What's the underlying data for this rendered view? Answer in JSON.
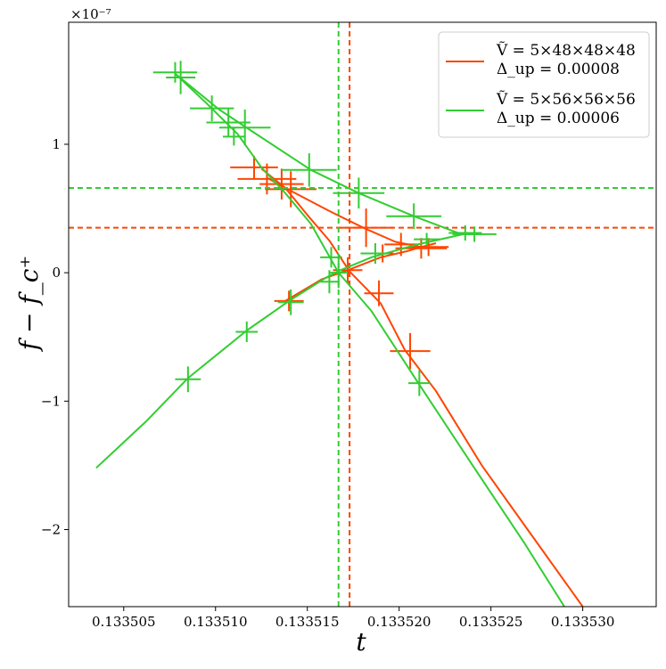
{
  "chart_data": {
    "type": "line",
    "title": "",
    "xlabel": "t",
    "ylabel": "f − f_c⁺",
    "y_multiplier": "×10⁻⁷",
    "xlim": [
      0.133502,
      0.133534
    ],
    "ylim": [
      -2.6,
      1.95
    ],
    "x_ticks": [
      0.133505,
      0.13351,
      0.133515,
      0.13352,
      0.133525,
      0.13353
    ],
    "x_tick_labels": [
      "0.133505",
      "0.133510",
      "0.133515",
      "0.133520",
      "0.133525",
      "0.133530"
    ],
    "y_ticks": [
      -2,
      -1,
      0,
      1
    ],
    "y_tick_labels": [
      "−2",
      "−1",
      "0",
      "1"
    ],
    "legend_position": "top-right",
    "series": [
      {
        "name": "Ṽ = 5×48×48×48",
        "delta": "Δ_up = 0.00008",
        "color": "#ff4500",
        "vline_t": 0.1335173,
        "hline_f": 0.35,
        "curve": [
          [
            0.1335125,
            0.81
          ],
          [
            0.1335138,
            0.66
          ],
          [
            0.133515,
            0.45
          ],
          [
            0.1335162,
            0.25
          ],
          [
            0.1335173,
            0.01
          ],
          [
            0.133519,
            -0.24
          ],
          [
            0.1335203,
            -0.6
          ],
          [
            0.133522,
            -0.92
          ],
          [
            0.1335245,
            -1.5
          ],
          [
            0.133527,
            -2.0
          ],
          [
            0.13353,
            -2.6
          ]
        ],
        "curve2": [
          [
            0.1335138,
            -0.22
          ],
          [
            0.1335158,
            -0.05
          ],
          [
            0.1335172,
            0.02
          ],
          [
            0.133519,
            0.12
          ],
          [
            0.1335205,
            0.17
          ],
          [
            0.1335212,
            0.2
          ],
          [
            0.133522,
            0.23
          ]
        ],
        "curve3": [
          [
            0.1335128,
            0.74
          ],
          [
            0.1335138,
            0.66
          ],
          [
            0.1335162,
            0.48
          ],
          [
            0.1335182,
            0.34
          ],
          [
            0.1335198,
            0.24
          ],
          [
            0.1335212,
            0.2
          ]
        ],
        "points": [
          {
            "t": 0.1335121,
            "f": 0.82,
            "dx": 1.3e-06,
            "dy": 0.09
          },
          {
            "t": 0.1335128,
            "f": 0.73,
            "dx": 1.6e-06,
            "dy": 0.12
          },
          {
            "t": 0.1335136,
            "f": 0.69,
            "dx": 1.2e-06,
            "dy": 0.12
          },
          {
            "t": 0.1335141,
            "f": 0.65,
            "dx": 1.4e-06,
            "dy": 0.14
          },
          {
            "t": 0.1335182,
            "f": 0.35,
            "dx": 1.5e-06,
            "dy": 0.15
          },
          {
            "t": 0.1335201,
            "f": 0.22,
            "dx": 9e-07,
            "dy": 0.09
          },
          {
            "t": 0.1335212,
            "f": 0.19,
            "dx": 1.4e-06,
            "dy": 0.08
          },
          {
            "t": 0.1335216,
            "f": 0.2,
            "dx": 1.1e-06,
            "dy": 0.07
          },
          {
            "t": 0.1335172,
            "f": 0.02,
            "dx": 8e-07,
            "dy": 0.1
          },
          {
            "t": 0.1335189,
            "f": -0.16,
            "dx": 8e-07,
            "dy": 0.1
          },
          {
            "t": 0.1335206,
            "f": -0.61,
            "dx": 1.1e-06,
            "dy": 0.14
          },
          {
            "t": 0.133514,
            "f": -0.22,
            "dx": 8e-07,
            "dy": 0.08
          },
          {
            "t": 0.1335191,
            "f": 0.15,
            "dx": 6e-07,
            "dy": 0.07
          }
        ]
      },
      {
        "name": "Ṽ = 5×56×56×56",
        "delta": "Δ_up = 0.00006",
        "color": "#32cd32",
        "vline_t": 0.1335167,
        "hline_f": 0.66,
        "curve": [
          [
            0.1335078,
            1.55
          ],
          [
            0.1335095,
            1.32
          ],
          [
            0.1335112,
            1.08
          ],
          [
            0.1335125,
            0.82
          ],
          [
            0.1335138,
            0.62
          ],
          [
            0.1335152,
            0.38
          ],
          [
            0.1335167,
            0.0
          ],
          [
            0.1335185,
            -0.3
          ],
          [
            0.133521,
            -0.85
          ],
          [
            0.133524,
            -1.5
          ],
          [
            0.1335268,
            -2.1
          ],
          [
            0.133529,
            -2.6
          ]
        ],
        "curve2": [
          [
            0.1335035,
            -1.52
          ],
          [
            0.1335062,
            -1.16
          ],
          [
            0.1335085,
            -0.82
          ],
          [
            0.1335117,
            -0.45
          ],
          [
            0.133514,
            -0.22
          ],
          [
            0.133516,
            -0.04
          ],
          [
            0.1335168,
            0.02
          ],
          [
            0.1335185,
            0.12
          ],
          [
            0.133521,
            0.22
          ],
          [
            0.1335235,
            0.3
          ],
          [
            0.1335245,
            0.3
          ]
        ],
        "curve3": [
          [
            0.1335078,
            1.55
          ],
          [
            0.1335102,
            1.27
          ],
          [
            0.133512,
            1.1
          ],
          [
            0.1335152,
            0.8
          ],
          [
            0.1335178,
            0.62
          ],
          [
            0.1335208,
            0.44
          ],
          [
            0.1335232,
            0.31
          ],
          [
            0.1335245,
            0.3
          ]
        ],
        "points": [
          {
            "t": 0.1335078,
            "f": 1.56,
            "dx": 1.2e-06,
            "dy": 0.08
          },
          {
            "t": 0.1335081,
            "f": 1.52,
            "dx": 8e-07,
            "dy": 0.13
          },
          {
            "t": 0.1335098,
            "f": 1.28,
            "dx": 1.2e-06,
            "dy": 0.1
          },
          {
            "t": 0.1335107,
            "f": 1.17,
            "dx": 1.2e-06,
            "dy": 0.11
          },
          {
            "t": 0.133511,
            "f": 1.06,
            "dx": 6e-07,
            "dy": 0.07
          },
          {
            "t": 0.1335116,
            "f": 1.13,
            "dx": 1.4e-06,
            "dy": 0.14
          },
          {
            "t": 0.1335151,
            "f": 0.8,
            "dx": 1.5e-06,
            "dy": 0.13
          },
          {
            "t": 0.1335178,
            "f": 0.62,
            "dx": 1.4e-06,
            "dy": 0.12
          },
          {
            "t": 0.1335208,
            "f": 0.44,
            "dx": 1.5e-06,
            "dy": 0.1
          },
          {
            "t": 0.1335236,
            "f": 0.31,
            "dx": 9e-07,
            "dy": 0.06
          },
          {
            "t": 0.1335241,
            "f": 0.3,
            "dx": 1.2e-06,
            "dy": 0.06
          },
          {
            "t": 0.1335215,
            "f": 0.26,
            "dx": 7e-07,
            "dy": 0.05
          },
          {
            "t": 0.1335187,
            "f": 0.15,
            "dx": 8e-07,
            "dy": 0.08
          },
          {
            "t": 0.1335163,
            "f": 0.12,
            "dx": 6e-07,
            "dy": 0.08
          },
          {
            "t": 0.1335167,
            "f": 0.0,
            "dx": 5e-07,
            "dy": 0.12
          },
          {
            "t": 0.1335162,
            "f": -0.07,
            "dx": 5e-07,
            "dy": 0.09
          },
          {
            "t": 0.1335141,
            "f": -0.23,
            "dx": 7e-07,
            "dy": 0.1
          },
          {
            "t": 0.1335117,
            "f": -0.46,
            "dx": 6e-07,
            "dy": 0.08
          },
          {
            "t": 0.1335085,
            "f": -0.83,
            "dx": 7e-07,
            "dy": 0.1
          },
          {
            "t": 0.1335211,
            "f": -0.86,
            "dx": 6e-07,
            "dy": 0.1
          }
        ]
      }
    ]
  }
}
